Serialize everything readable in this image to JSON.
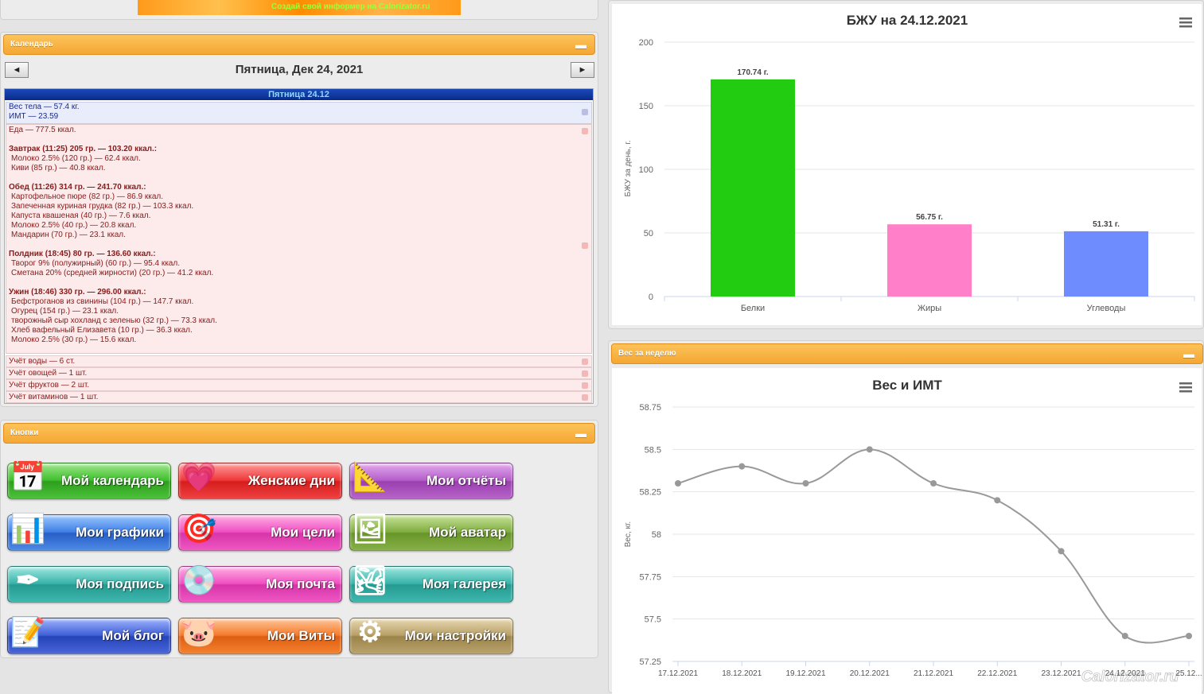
{
  "banner": {
    "text": "Создай свой информер на Calorizator.ru"
  },
  "calendar": {
    "title": "Календарь",
    "date_title": "Пятница, Дек 24, 2021",
    "prev": "◄",
    "next": "►",
    "day_header": "Пятница 24.12",
    "weight_line": "Вес тела — 57.4 кг.",
    "bmi_line": "ИМТ — 23.59",
    "food_total": "Еда — 777.5 ккал.",
    "meals": [
      {
        "title": "Завтрак (11:25) 205 гр. — 103.20 ккал.:",
        "items": [
          "Молоко 2.5% (120 гр.) — 62.4 ккал.",
          "Киви (85 гр.) — 40.8 ккал."
        ]
      },
      {
        "title": "Обед (11:26) 314 гр. — 241.70 ккал.:",
        "items": [
          "Картофельное пюре (82 гр.) — 86.9 ккал.",
          "Запеченная куриная грудка (82 гр.) — 103.3 ккал.",
          "Капуста квашеная (40 гр.) — 7.6 ккал.",
          "Молоко 2.5% (40 гр.) — 20.8 ккал.",
          "Мандарин (70 гр.) — 23.1 ккал."
        ]
      },
      {
        "title": "Полдник (18:45) 80 гр. — 136.60 ккал.:",
        "items": [
          "Творог 9% (полужирный) (60 гр.) — 95.4 ккал.",
          "Сметана 20% (средней жирности) (20 гр.) — 41.2 ккал."
        ]
      },
      {
        "title": "Ужин (18:46) 330 гр. — 296.00 ккал.:",
        "items": [
          "Бефстроганов из свинины (104 гр.) — 147.7 ккал.",
          "Огурец (154 гр.) — 23.1 ккал.",
          "творожный сыр хохланд с зеленью (32 гр.) — 73.3 ккал.",
          "Хлеб вафельный Елизавета (10 гр.) — 36.3 ккал.",
          "Молоко 2.5% (30 гр.) — 15.6 ккал."
        ]
      }
    ],
    "trackers": [
      "Учёт воды — 6 ст.",
      "Учёт овощей — 1 шт.",
      "Учёт фруктов — 2 шт.",
      "Учёт витаминов — 1 шт."
    ]
  },
  "buttons_panel": {
    "title": "Кнопки",
    "buttons": [
      {
        "label": "Мой календарь",
        "icon": "calendar-icon",
        "color": "#3fbf2d"
      },
      {
        "label": "Женские дни",
        "icon": "heart-icon",
        "color": "#f03838"
      },
      {
        "label": "Мои отчёты",
        "icon": "drafting-tools-icon",
        "color": "#b55ec9"
      },
      {
        "label": "Мои графики",
        "icon": "bar-graph-icon",
        "color": "#3f7fe6"
      },
      {
        "label": "Мои цели",
        "icon": "target-icon",
        "color": "#f04fc2"
      },
      {
        "label": "Мой аватар",
        "icon": "face-icon",
        "color": "#80ad3f"
      },
      {
        "label": "Моя подпись",
        "icon": "pen-ink-icon",
        "color": "#38b3a9"
      },
      {
        "label": "Моя почта",
        "icon": "mail-disc-icon",
        "color": "#f04fc2"
      },
      {
        "label": "Моя галерея",
        "icon": "photos-icon",
        "color": "#38b3a9"
      },
      {
        "label": "Мой блог",
        "icon": "notepad-icon",
        "color": "#3f5fd6"
      },
      {
        "label": "Мои Виты",
        "icon": "piggy-bank-icon",
        "color": "#f57a2c"
      },
      {
        "label": "Мои настройки",
        "icon": "gears-icon",
        "color": "#b89f66"
      }
    ]
  },
  "weekly_panel": {
    "title": "Вес за неделю"
  },
  "watermark": "Calorizator.ru",
  "menu_icon": "hamburger-menu-icon",
  "chart_data": [
    {
      "type": "bar",
      "title": "БЖУ на 24.12.2021",
      "xlabel": "",
      "ylabel": "БЖУ за день, г.",
      "categories": [
        "Белки",
        "Жиры",
        "Углеводы"
      ],
      "values": [
        170.74,
        56.75,
        51.31
      ],
      "data_labels": [
        "170.74 г.",
        "56.75 г.",
        "51.31 г."
      ],
      "colors": [
        "#22cc11",
        "#ff7fc8",
        "#6f8cff"
      ],
      "ylim": [
        0,
        200
      ],
      "yticks": [
        0,
        50,
        100,
        150,
        200
      ],
      "grid": true
    },
    {
      "type": "line",
      "title": "Вес и ИМТ",
      "xlabel": "",
      "ylabel": "Вес, кг.",
      "categories": [
        "17.12.2021",
        "18.12.2021",
        "19.12.2021",
        "20.12.2021",
        "21.12.2021",
        "22.12.2021",
        "23.12.2021",
        "24.12.2021",
        "25.12..."
      ],
      "values": [
        58.3,
        58.4,
        58.3,
        58.5,
        58.3,
        58.2,
        57.9,
        57.4,
        57.4
      ],
      "ylim": [
        57.25,
        58.75
      ],
      "yticks": [
        "57.25",
        "57.5",
        "57.75",
        "58",
        "58.25",
        "58.5",
        "58.75"
      ],
      "color": "#999999",
      "grid": true
    }
  ]
}
